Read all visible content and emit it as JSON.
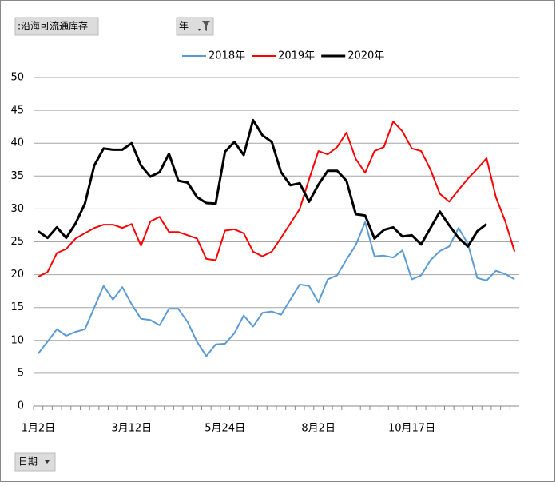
{
  "chart_data": {
    "type": "line",
    "field_button": ":沿海可流通库存",
    "filter_button": "年",
    "axis_button": "日期",
    "categories": [
      "1月2日",
      null,
      null,
      null,
      null,
      null,
      null,
      null,
      null,
      null,
      "3月12日",
      null,
      null,
      null,
      null,
      null,
      null,
      null,
      null,
      null,
      "5月24日",
      null,
      null,
      null,
      null,
      null,
      null,
      null,
      null,
      null,
      "8月2日",
      null,
      null,
      null,
      null,
      null,
      null,
      null,
      null,
      null,
      "10月17日",
      null,
      null,
      null,
      null,
      null,
      null,
      null,
      null,
      null,
      null,
      null
    ],
    "series": [
      {
        "name": "2018年",
        "color": "#5b9bd5",
        "values": [
          8,
          9.8,
          11.7,
          10.7,
          11.3,
          11.7,
          15,
          18.3,
          16.2,
          18.1,
          15.5,
          13.3,
          13.1,
          12.3,
          14.8,
          14.8,
          12.8,
          9.8,
          7.6,
          9.4,
          9.5,
          11.1,
          13.8,
          12.1,
          14.2,
          14.4,
          13.9,
          16.2,
          18.5,
          18.3,
          15.8,
          19.3,
          19.9,
          22.3,
          24.5,
          28,
          22.8,
          22.9,
          22.6,
          23.7,
          19.3,
          19.9,
          22.2,
          23.6,
          24.3,
          27.1,
          24.7,
          19.5,
          19.1,
          20.6,
          20.1,
          19.3
        ]
      },
      {
        "name": "2019年",
        "color": "#ff0000",
        "values": [
          19.7,
          20.4,
          23.3,
          23.9,
          25.5,
          26.3,
          27.1,
          27.6,
          27.6,
          27.1,
          27.7,
          24.4,
          28.1,
          28.8,
          26.5,
          26.5,
          26,
          25.5,
          22.4,
          22.2,
          26.7,
          26.9,
          26.3,
          23.5,
          22.8,
          23.5,
          25.6,
          27.8,
          30,
          34.5,
          38.8,
          38.3,
          39.4,
          41.6,
          37.6,
          35.5,
          38.8,
          39.4,
          43.3,
          41.8,
          39.2,
          38.8,
          36,
          32.3,
          31.1,
          32.9,
          34.6,
          36.1,
          37.7,
          31.8,
          28.1,
          23.5
        ]
      },
      {
        "name": "2020年",
        "color": "#000000",
        "values": [
          26.6,
          25.6,
          27.2,
          25.6,
          27.8,
          30.8,
          36.6,
          39.2,
          39,
          39,
          40,
          36.6,
          34.9,
          35.6,
          38.4,
          34.3,
          34,
          31.8,
          30.9,
          30.8,
          38.7,
          40.2,
          38.2,
          43.5,
          41.2,
          40.2,
          35.6,
          33.6,
          33.9,
          31.1,
          33.7,
          35.8,
          35.8,
          34.3,
          29.2,
          29,
          25.5,
          26.8,
          27.2,
          25.8,
          26,
          24.6,
          27.1,
          29.6,
          27.5,
          25.6,
          24.3,
          26.6,
          27.7,
          null,
          null,
          null
        ]
      }
    ],
    "ylim": [
      0,
      50
    ],
    "yticks": [
      0,
      5,
      10,
      15,
      20,
      25,
      30,
      35,
      40,
      45,
      50
    ],
    "grid": true,
    "legend": "top"
  }
}
